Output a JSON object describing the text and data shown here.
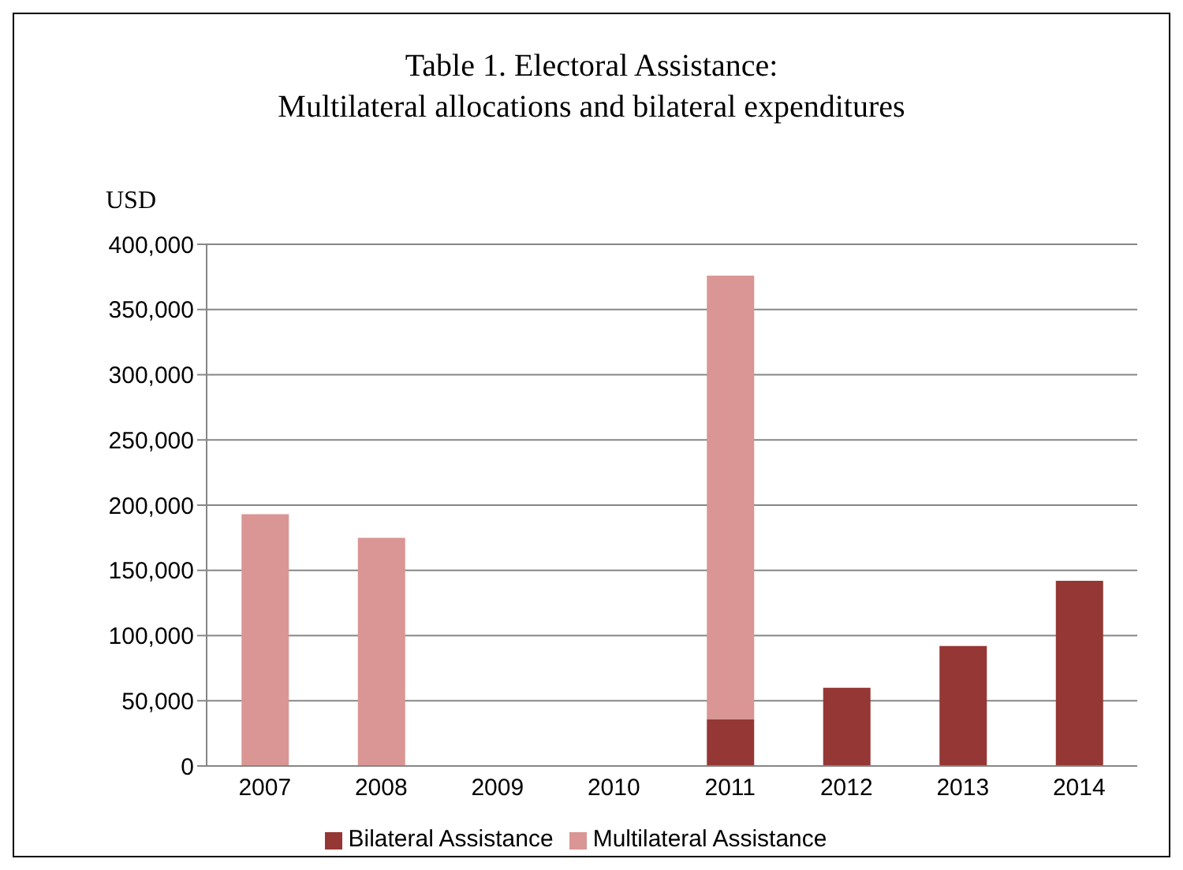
{
  "chart_data": {
    "type": "bar",
    "title": "Table 1. Electoral Assistance:\nMultilateral allocations and bilateral expenditures",
    "ylabel": "USD",
    "categories": [
      "2007",
      "2008",
      "2009",
      "2010",
      "2011",
      "2012",
      "2013",
      "2014"
    ],
    "series": [
      {
        "name": "Bilateral Assistance",
        "color": "#953735",
        "values": [
          null,
          null,
          null,
          null,
          36000,
          60000,
          92000,
          142000
        ]
      },
      {
        "name": "Multilateral Assistance",
        "color": "#d99694",
        "values": [
          193000,
          175000,
          null,
          null,
          340000,
          null,
          null,
          null
        ]
      }
    ],
    "stacked": true,
    "ylim": [
      0,
      400000
    ],
    "yticks": [
      0,
      {
        "value": 50000,
        "label": "50,000"
      },
      {
        "value": 100000,
        "label": "100,000"
      },
      {
        "value": 150000,
        "label": "150,000"
      },
      {
        "value": 200000,
        "label": "200,000"
      },
      {
        "value": 250000,
        "label": "250,000"
      },
      {
        "value": 300000,
        "label": "300,000"
      },
      {
        "value": 350000,
        "label": "350,000"
      },
      {
        "value": 400000,
        "label": "400,000"
      }
    ],
    "grid": "y",
    "legend": "bottom"
  }
}
